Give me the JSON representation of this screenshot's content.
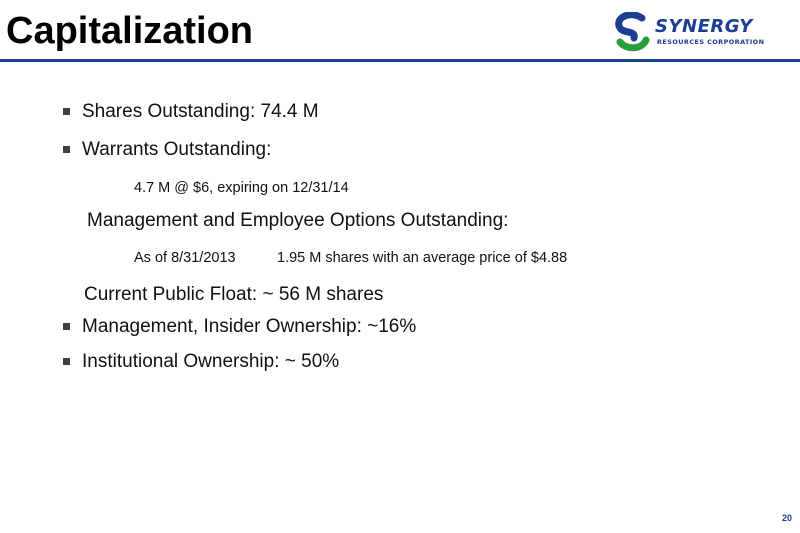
{
  "slide": {
    "title": "Capitalization",
    "page_number": "20"
  },
  "logo": {
    "name": "SYNERGY",
    "subtitle": "RESOURCES CORPORATION",
    "colors": {
      "blue": "#1c3f94",
      "green": "#2a9d3c"
    }
  },
  "content": {
    "shares_outstanding": "Shares Outstanding: 74.4 M",
    "warrants_outstanding": "Warrants Outstanding:",
    "warrants_detail": "4.7 M @ $6, expiring on 12/31/14",
    "options_heading": "Management and Employee Options Outstanding:",
    "options_date": "As of 8/31/2013",
    "options_detail": "1.95 M shares with an average price of $4.88",
    "public_float": "Current Public Float: ~ 56 M shares",
    "insider_ownership": "Management, Insider Ownership: ~16%",
    "institutional_ownership": "Institutional Ownership: ~ 50%"
  },
  "colors": {
    "accent_rule": "#1c3f94",
    "bullet": "#404040"
  }
}
